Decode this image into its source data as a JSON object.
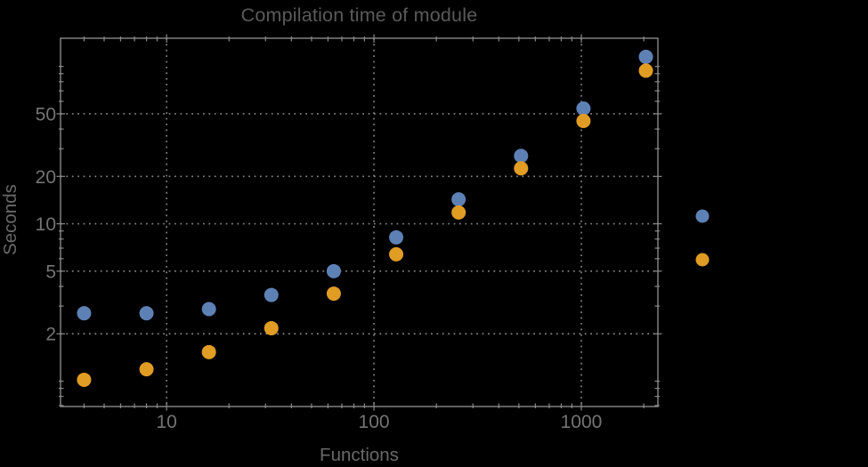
{
  "chart_data": {
    "type": "scatter",
    "title": "Compilation time of module",
    "xlabel": "Functions",
    "ylabel": "Seconds",
    "x_scale": "log",
    "y_scale": "log",
    "xlim": [
      3.08,
      2340
    ],
    "ylim": [
      0.69,
      151
    ],
    "x_ticks_labeled": [
      10,
      100,
      1000
    ],
    "y_ticks_labeled": [
      2,
      5,
      10,
      20,
      50
    ],
    "grid": true,
    "grid_style": "dotted",
    "x": [
      4,
      8,
      16,
      32,
      64,
      128,
      256,
      512,
      1024,
      2048
    ],
    "series": [
      {
        "name": "series-1-blue",
        "color": "#5E81B5",
        "values": [
          2.7,
          2.7,
          2.87,
          3.53,
          5.0,
          8.2,
          14.3,
          27,
          54,
          115
        ]
      },
      {
        "name": "series-2-orange",
        "color": "#E19C24",
        "values": [
          1.02,
          1.19,
          1.53,
          2.17,
          3.6,
          6.4,
          11.8,
          22.5,
          45,
          94
        ]
      }
    ],
    "legend": {
      "labels_visible": false,
      "markers": [
        {
          "name": "legend-marker-1",
          "color": "#5E81B5"
        },
        {
          "name": "legend-marker-2",
          "color": "#E19C24"
        }
      ]
    }
  },
  "colors": {
    "background": "#000000",
    "frame": "#8a8a8a",
    "grid": "#828282",
    "tick_label": "#747474",
    "axis_label": "#696969",
    "title": "#5a5a5a"
  }
}
